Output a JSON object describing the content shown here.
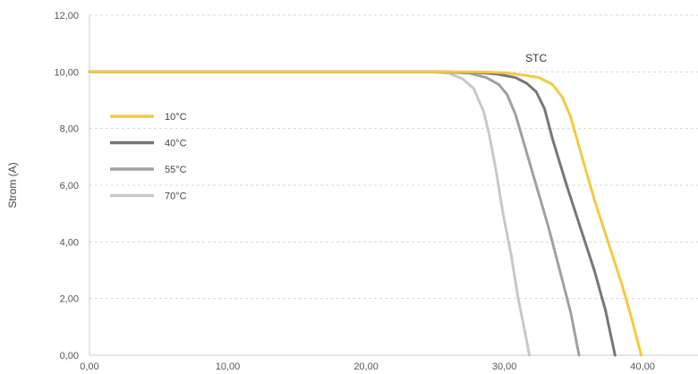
{
  "chart_data": {
    "type": "line",
    "title": "",
    "xlabel": "",
    "ylabel": "Strom (A)",
    "xlim": [
      0,
      44
    ],
    "ylim": [
      0,
      12
    ],
    "x_ticks": [
      "0,00",
      "10,00",
      "20,00",
      "30,00",
      "40,00"
    ],
    "x_tick_values": [
      0,
      10,
      20,
      30,
      40
    ],
    "y_ticks": [
      "0,00",
      "2,00",
      "4,00",
      "6,00",
      "8,00",
      "10,00",
      "12,00"
    ],
    "y_tick_values": [
      0,
      2,
      4,
      6,
      8,
      10,
      12
    ],
    "grid": "horizontal dashed",
    "legend_position": "left",
    "annotations": [
      {
        "text": "STC",
        "x": 32.3,
        "y": 10.3
      }
    ],
    "series": [
      {
        "name": "10°C",
        "color": "#F5C842",
        "points": [
          [
            0,
            10.0
          ],
          [
            26,
            10.0
          ],
          [
            28,
            10.0
          ],
          [
            30,
            9.97
          ],
          [
            31.5,
            9.88
          ],
          [
            32.5,
            9.8
          ],
          [
            33.5,
            9.55
          ],
          [
            34.2,
            9.1
          ],
          [
            34.8,
            8.4
          ],
          [
            35.5,
            7.2
          ],
          [
            36.5,
            5.5
          ],
          [
            37.5,
            4.0
          ],
          [
            38.5,
            2.5
          ],
          [
            39.2,
            1.3
          ],
          [
            39.9,
            0.0
          ]
        ]
      },
      {
        "name": "40°C",
        "color": "#777777",
        "points": [
          [
            0,
            10.0
          ],
          [
            26,
            10.0
          ],
          [
            28,
            9.98
          ],
          [
            29.5,
            9.92
          ],
          [
            30.8,
            9.8
          ],
          [
            31.6,
            9.6
          ],
          [
            32.3,
            9.3
          ],
          [
            32.9,
            8.7
          ],
          [
            33.5,
            7.6
          ],
          [
            34.5,
            6.0
          ],
          [
            35.5,
            4.5
          ],
          [
            36.5,
            3.0
          ],
          [
            37.3,
            1.6
          ],
          [
            38.0,
            0.0
          ]
        ]
      },
      {
        "name": "55°C",
        "color": "#A0A0A0",
        "points": [
          [
            0,
            10.0
          ],
          [
            25.5,
            10.0
          ],
          [
            27.5,
            9.95
          ],
          [
            28.7,
            9.8
          ],
          [
            29.6,
            9.55
          ],
          [
            30.2,
            9.2
          ],
          [
            30.8,
            8.5
          ],
          [
            31.4,
            7.5
          ],
          [
            32.3,
            6.0
          ],
          [
            33.2,
            4.5
          ],
          [
            34.0,
            3.0
          ],
          [
            34.8,
            1.5
          ],
          [
            35.4,
            0.0
          ]
        ]
      },
      {
        "name": "70°C",
        "color": "#C8C8C8",
        "points": [
          [
            0,
            10.0
          ],
          [
            24.5,
            10.0
          ],
          [
            26,
            9.95
          ],
          [
            27,
            9.75
          ],
          [
            27.8,
            9.4
          ],
          [
            28.5,
            8.6
          ],
          [
            28.9,
            7.8
          ],
          [
            29.4,
            6.5
          ],
          [
            29.9,
            5.0
          ],
          [
            30.5,
            3.5
          ],
          [
            31.0,
            2.0
          ],
          [
            31.5,
            0.8
          ],
          [
            31.8,
            0.0
          ]
        ]
      }
    ]
  }
}
